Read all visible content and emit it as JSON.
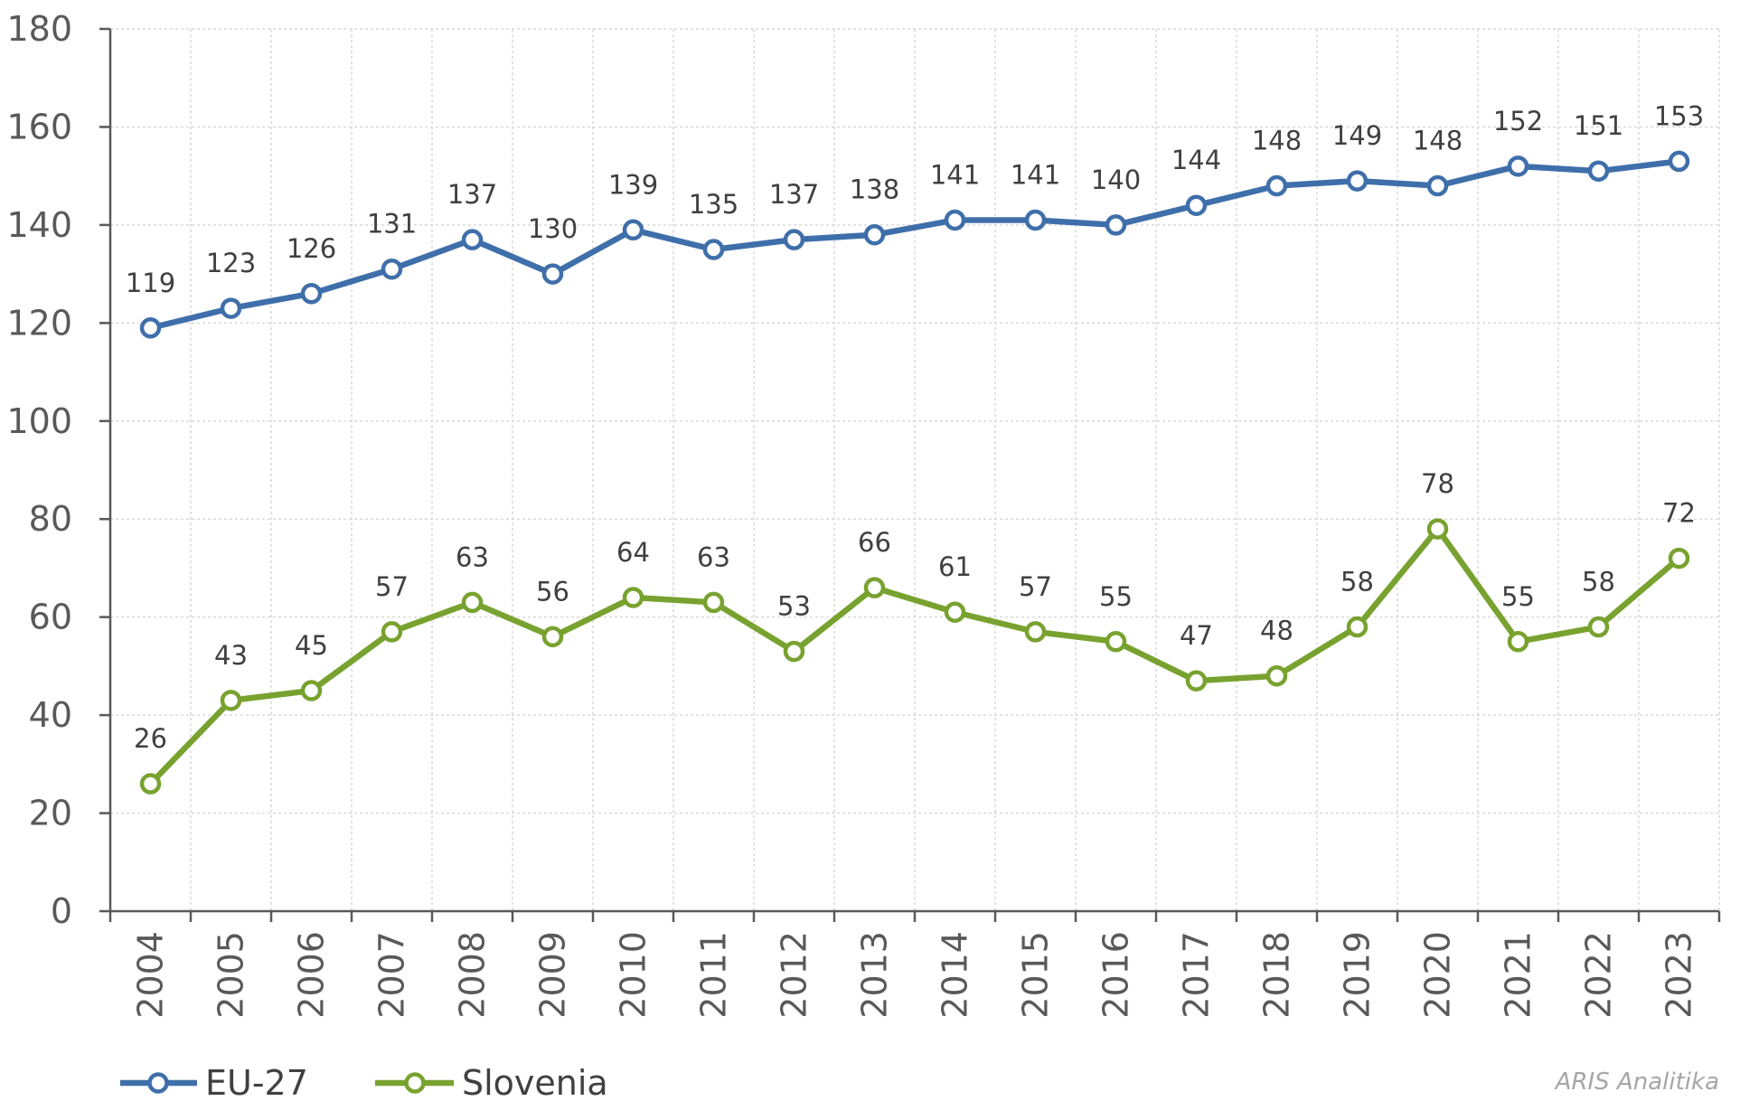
{
  "chart_data": {
    "type": "line",
    "categories": [
      "2004",
      "2005",
      "2006",
      "2007",
      "2008",
      "2009",
      "2010",
      "2011",
      "2012",
      "2013",
      "2014",
      "2015",
      "2016",
      "2017",
      "2018",
      "2019",
      "2020",
      "2021",
      "2022",
      "2023"
    ],
    "series": [
      {
        "name": "EU-27",
        "color": "#3f6faa",
        "values": [
          119,
          123,
          126,
          131,
          137,
          130,
          139,
          135,
          137,
          138,
          141,
          141,
          140,
          144,
          148,
          149,
          148,
          152,
          151,
          153
        ]
      },
      {
        "name": "Slovenia",
        "color": "#78a22f",
        "values": [
          26,
          43,
          45,
          57,
          63,
          56,
          64,
          63,
          53,
          66,
          61,
          57,
          55,
          47,
          48,
          58,
          78,
          55,
          58,
          72
        ]
      }
    ],
    "ylim": [
      0,
      180
    ],
    "yticks": [
      0,
      20,
      40,
      60,
      80,
      100,
      120,
      140,
      160,
      180
    ],
    "grid": true,
    "legend": "bottom-left",
    "data_labels": true
  },
  "source_note": "ARIS Analitika"
}
